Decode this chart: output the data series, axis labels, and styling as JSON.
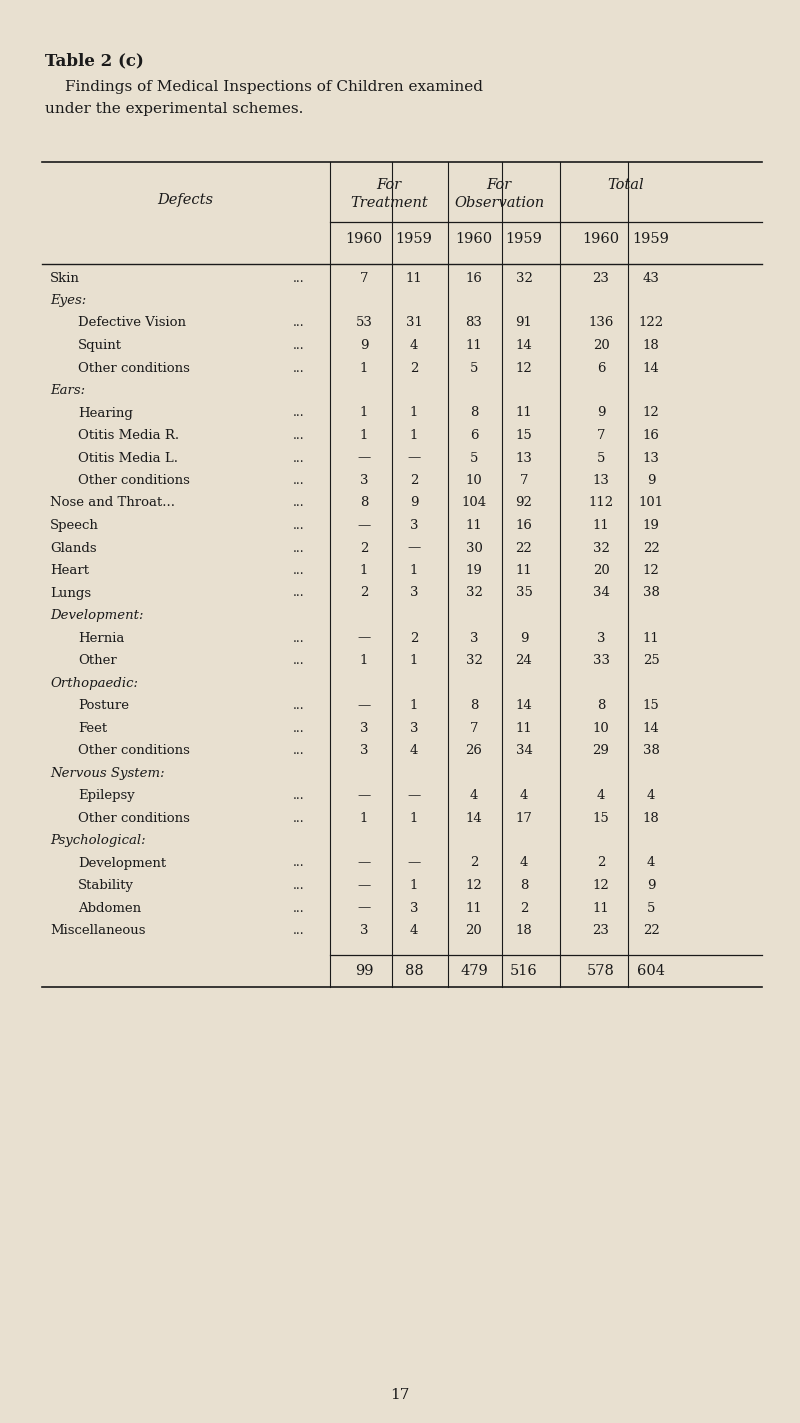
{
  "title_bold": "Table 2 (c)",
  "subtitle": "Findings of Medical Inspections of Children examined\nunder the experimental schemes.",
  "bg_color": "#e8e0d0",
  "col_headers": [
    "1960",
    "1959",
    "1960",
    "1959",
    "1960",
    "1959"
  ],
  "rows": [
    {
      "label": "Skin",
      "extra_dots": "   ...        ...      ...",
      "indent": 0,
      "italic": false,
      "header_only": false,
      "vals": [
        "7",
        "11",
        "16",
        "32",
        "23",
        "43"
      ]
    },
    {
      "label": "Eyes:",
      "extra_dots": "",
      "indent": 0,
      "italic": true,
      "header_only": true,
      "vals": [
        "",
        "",
        "",
        "",
        "",
        ""
      ]
    },
    {
      "label": "Defective Vision",
      "extra_dots": "   ...",
      "indent": 1,
      "italic": false,
      "header_only": false,
      "vals": [
        "53",
        "31",
        "83",
        "91",
        "136",
        "122"
      ]
    },
    {
      "label": "Squint",
      "extra_dots": "   ...     ...",
      "indent": 1,
      "italic": false,
      "header_only": false,
      "vals": [
        "9",
        "4",
        "11",
        "14",
        "20",
        "18"
      ]
    },
    {
      "label": "Other conditions",
      "extra_dots": "   ...",
      "indent": 1,
      "italic": false,
      "header_only": false,
      "vals": [
        "1",
        "2",
        "5",
        "12",
        "6",
        "14"
      ]
    },
    {
      "label": "Ears:",
      "extra_dots": "",
      "indent": 0,
      "italic": true,
      "header_only": true,
      "vals": [
        "",
        "",
        "",
        "",
        "",
        ""
      ]
    },
    {
      "label": "Hearing",
      "extra_dots": "   ...     ...",
      "indent": 1,
      "italic": false,
      "header_only": false,
      "vals": [
        "1",
        "1",
        "8",
        "11",
        "9",
        "12"
      ]
    },
    {
      "label": "Otitis Media R.",
      "extra_dots": "   ...",
      "indent": 1,
      "italic": false,
      "header_only": false,
      "vals": [
        "1",
        "1",
        "6",
        "15",
        "7",
        "16"
      ]
    },
    {
      "label": "Otitis Media L.",
      "extra_dots": "   ...",
      "indent": 1,
      "italic": false,
      "header_only": false,
      "vals": [
        "—",
        "—",
        "5",
        "13",
        "5",
        "13"
      ]
    },
    {
      "label": "Other conditions",
      "extra_dots": "   ...",
      "indent": 1,
      "italic": false,
      "header_only": false,
      "vals": [
        "3",
        "2",
        "10",
        "7",
        "13",
        "9"
      ]
    },
    {
      "label": "Nose and Throat...",
      "extra_dots": "   ...",
      "indent": 0,
      "italic": false,
      "header_only": false,
      "vals": [
        "8",
        "9",
        "104",
        "92",
        "112",
        "101"
      ]
    },
    {
      "label": "Speech",
      "extra_dots": "   ...     ...      ...",
      "indent": 0,
      "italic": false,
      "header_only": false,
      "vals": [
        "—",
        "3",
        "11",
        "16",
        "11",
        "19"
      ]
    },
    {
      "label": "Glands",
      "extra_dots": "   ...     ...      ...",
      "indent": 0,
      "italic": false,
      "header_only": false,
      "vals": [
        "2",
        "—",
        "30",
        "22",
        "32",
        "22"
      ]
    },
    {
      "label": "Heart",
      "extra_dots": "   ...     ...      ...",
      "indent": 0,
      "italic": false,
      "header_only": false,
      "vals": [
        "1",
        "1",
        "19",
        "11",
        "20",
        "12"
      ]
    },
    {
      "label": "Lungs",
      "extra_dots": "   ...     ...      ...",
      "indent": 0,
      "italic": false,
      "header_only": false,
      "vals": [
        "2",
        "3",
        "32",
        "35",
        "34",
        "38"
      ]
    },
    {
      "label": "Development:",
      "extra_dots": "",
      "indent": 0,
      "italic": true,
      "header_only": true,
      "vals": [
        "",
        "",
        "",
        "",
        "",
        ""
      ]
    },
    {
      "label": "Hernia",
      "extra_dots": "   ...     ...      ...",
      "indent": 1,
      "italic": false,
      "header_only": false,
      "vals": [
        "—",
        "2",
        "3",
        "9",
        "3",
        "11"
      ]
    },
    {
      "label": "Other",
      "extra_dots": "   ...     ...      ...",
      "indent": 1,
      "italic": false,
      "header_only": false,
      "vals": [
        "1",
        "1",
        "32",
        "24",
        "33",
        "25"
      ]
    },
    {
      "label": "Orthopaedic:",
      "extra_dots": "",
      "indent": 0,
      "italic": true,
      "header_only": true,
      "vals": [
        "",
        "",
        "",
        "",
        "",
        ""
      ]
    },
    {
      "label": "Posture",
      "extra_dots": "   ...     ...      ...",
      "indent": 1,
      "italic": false,
      "header_only": false,
      "vals": [
        "—",
        "1",
        "8",
        "14",
        "8",
        "15"
      ]
    },
    {
      "label": "Feet",
      "extra_dots": "   ...     ...      ...",
      "indent": 1,
      "italic": false,
      "header_only": false,
      "vals": [
        "3",
        "3",
        "7",
        "11",
        "10",
        "14"
      ]
    },
    {
      "label": "Other conditions",
      "extra_dots": "   ...",
      "indent": 1,
      "italic": false,
      "header_only": false,
      "vals": [
        "3",
        "4",
        "26",
        "34",
        "29",
        "38"
      ]
    },
    {
      "label": "Nervous System:",
      "extra_dots": "",
      "indent": 0,
      "italic": true,
      "header_only": true,
      "vals": [
        "",
        "",
        "",
        "",
        "",
        ""
      ]
    },
    {
      "label": "Epilepsy",
      "extra_dots": "   ...     ...      ...",
      "indent": 1,
      "italic": false,
      "header_only": false,
      "vals": [
        "—",
        "—",
        "4",
        "4",
        "4",
        "4"
      ]
    },
    {
      "label": "Other conditions",
      "extra_dots": "   ...",
      "indent": 1,
      "italic": false,
      "header_only": false,
      "vals": [
        "1",
        "1",
        "14",
        "17",
        "15",
        "18"
      ]
    },
    {
      "label": "Psychological:",
      "extra_dots": "",
      "indent": 0,
      "italic": true,
      "header_only": true,
      "vals": [
        "",
        "",
        "",
        "",
        "",
        ""
      ]
    },
    {
      "label": "Development",
      "extra_dots": "   ...     ...",
      "indent": 1,
      "italic": false,
      "header_only": false,
      "vals": [
        "—",
        "—",
        "2",
        "4",
        "2",
        "4"
      ]
    },
    {
      "label": "Stability",
      "extra_dots": "   ...     ...",
      "indent": 1,
      "italic": false,
      "header_only": false,
      "vals": [
        "—",
        "1",
        "12",
        "8",
        "12",
        "9"
      ]
    },
    {
      "label": "Abdomen",
      "extra_dots": "   ...     ...",
      "indent": 1,
      "italic": false,
      "header_only": false,
      "vals": [
        "—",
        "3",
        "11",
        "2",
        "11",
        "5"
      ]
    },
    {
      "label": "Miscellaneous",
      "extra_dots": "   ...",
      "indent": 0,
      "italic": false,
      "header_only": false,
      "vals": [
        "3",
        "4",
        "20",
        "18",
        "23",
        "22"
      ]
    }
  ],
  "totals": [
    "99",
    "88",
    "479",
    "516",
    "578",
    "604"
  ],
  "page_number": "17",
  "text_color": "#1a1a1a",
  "line_color": "#1a1a1a"
}
